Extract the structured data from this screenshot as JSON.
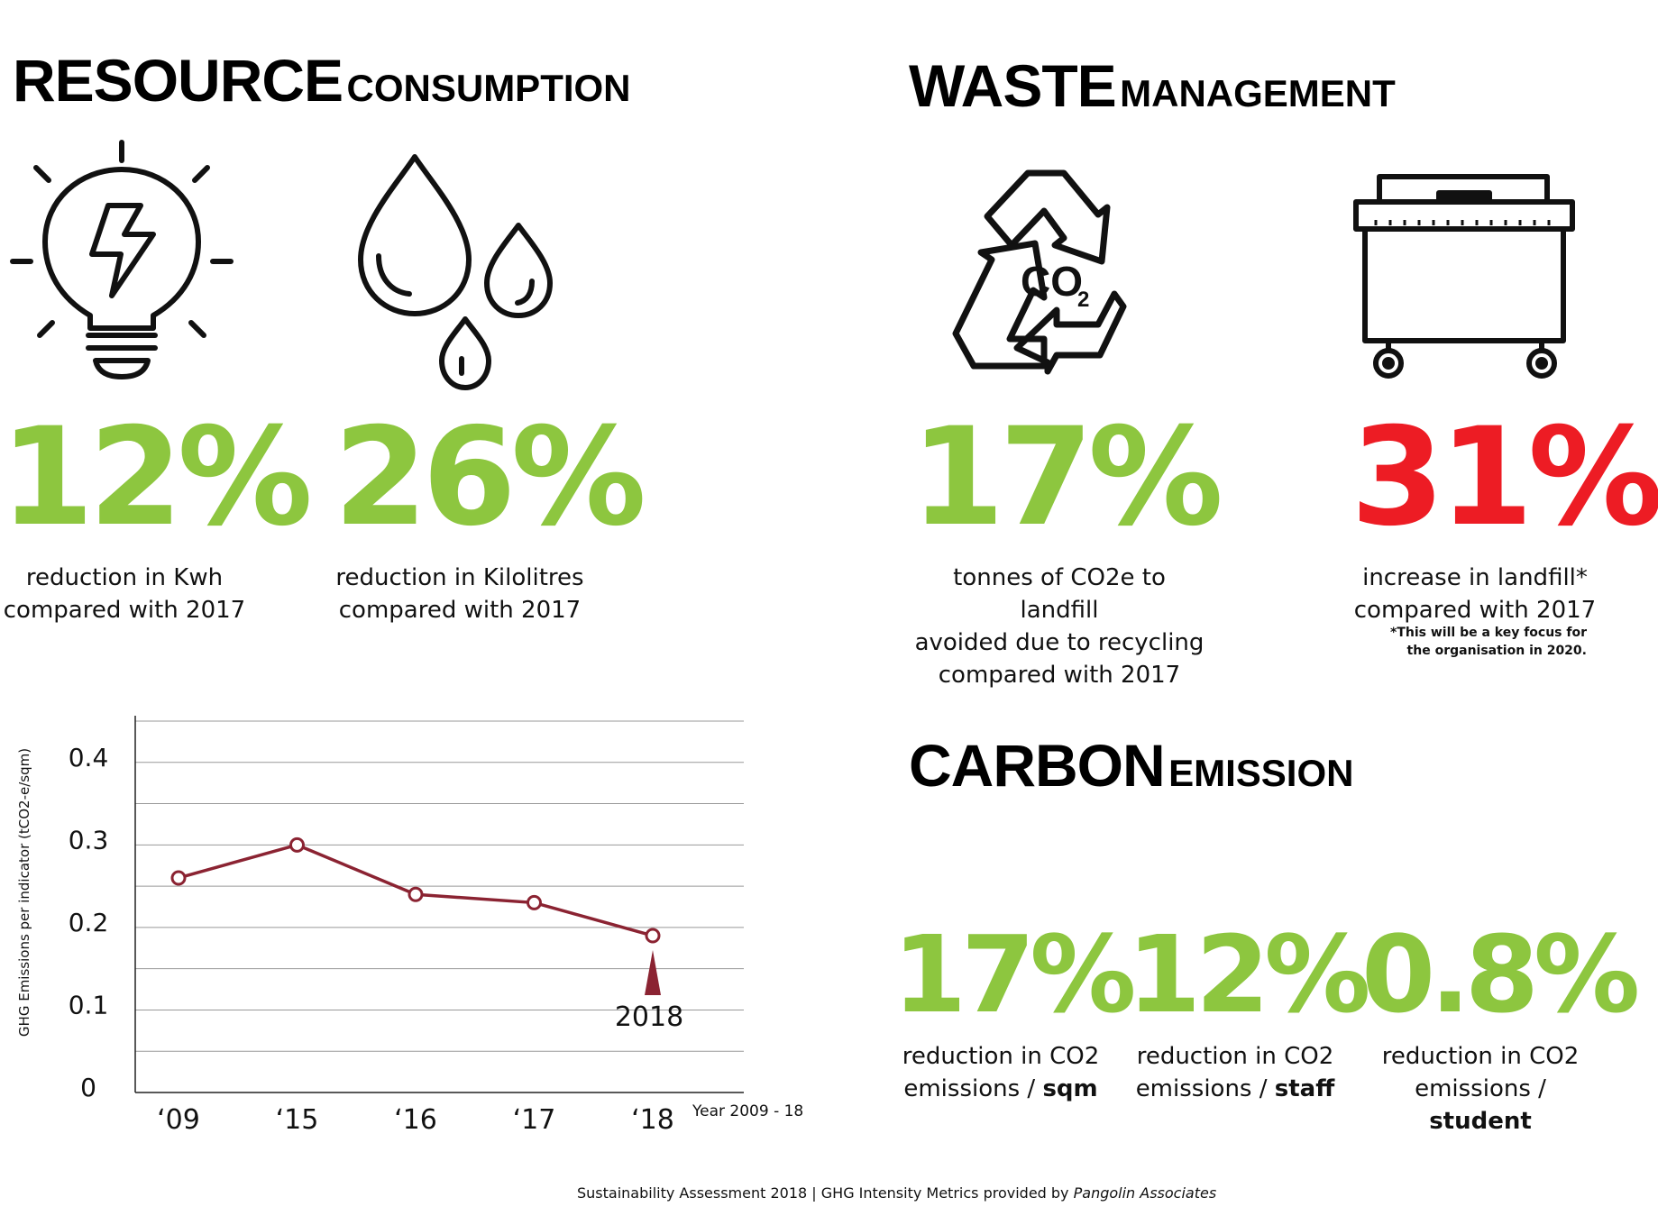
{
  "resource": {
    "heading_big": "RESOURCE",
    "heading_small": "CONSUMPTION",
    "electricity": {
      "value": "12%",
      "line1": "reduction in Kwh",
      "line2": "compared with 2017",
      "icon": "lightbulb-icon"
    },
    "water": {
      "value": "26%",
      "line1": "reduction in Kilolitres",
      "line2": "compared with 2017",
      "icon": "water-drops-icon"
    }
  },
  "waste": {
    "heading_big": "WASTE",
    "heading_small": "MANAGEMENT",
    "recycling": {
      "value": "17%",
      "line1": "tonnes of CO2e to landfill",
      "line2": "avoided due to recycling",
      "line3": "compared with 2017",
      "icon": "recycle-co2-icon",
      "icon_text": "CO",
      "icon_sub": "2"
    },
    "landfill": {
      "value": "31%",
      "line1": "increase in landfill*",
      "line2": "compared with 2017",
      "note1": "*This will be a key focus for",
      "note2": "the organisation in 2020.",
      "icon": "dumpster-icon"
    }
  },
  "carbon": {
    "heading_big": "CARBON",
    "heading_small": "EMISSION",
    "items": [
      {
        "value": "17%",
        "line1": "reduction in CO2",
        "line2_prefix": "emissions / ",
        "line2_bold": "sqm"
      },
      {
        "value": "12%",
        "line1": "reduction in CO2",
        "line2_prefix": "emissions / ",
        "line2_bold": "staff"
      },
      {
        "value": "0.8%",
        "line1": "reduction in CO2",
        "line2_prefix": "emissions / ",
        "line2_bold": "student"
      }
    ]
  },
  "colors": {
    "green": "#8dc63f",
    "red": "#ed1c24",
    "series": "#8b2332",
    "grid": "#999999"
  },
  "chart_data": {
    "type": "line",
    "categories": [
      "‘09",
      "‘15",
      "‘16",
      "‘17",
      "‘18"
    ],
    "series": [
      {
        "values": [
          0.26,
          0.3,
          0.24,
          0.23,
          0.19
        ]
      }
    ],
    "ylabel": "GHG Emissions per indicator (tCO2-e/sqm)",
    "xlabel": "Year 2009 - 18",
    "yticks": [
      "0",
      "0.1",
      "0.2",
      "0.3",
      "0.4"
    ],
    "ylim": [
      0,
      0.45
    ],
    "grid": true,
    "annotation": "2018"
  },
  "footer": {
    "text": "Sustainability Assessment 2018  |  GHG Intensity Metrics provided by ",
    "italic": "Pangolin Associates"
  }
}
